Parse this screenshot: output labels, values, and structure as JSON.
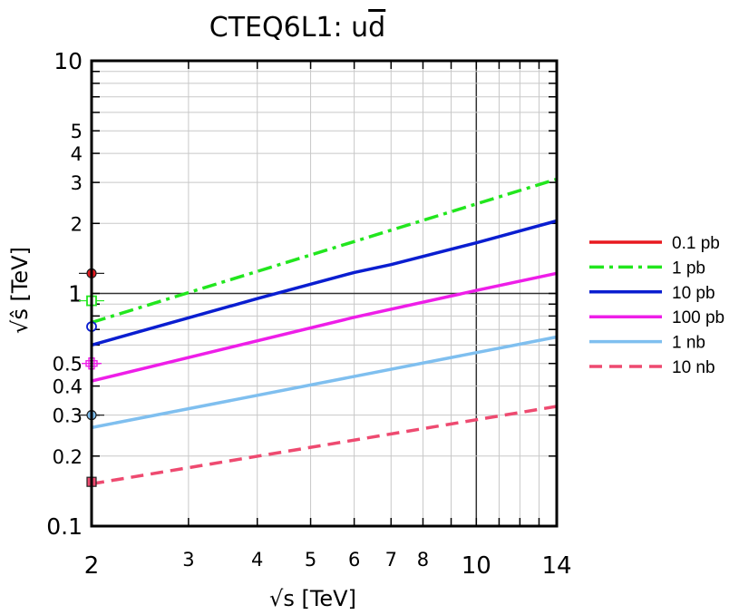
{
  "chart_data": {
    "type": "line",
    "title": "CTEQ6L1: u",
    "title_bar": "d",
    "xlabel": "√s  [TeV]",
    "ylabel": "√ŝ [TeV]",
    "x_scale": "log",
    "y_scale": "log",
    "xlim": [
      2,
      14
    ],
    "ylim": [
      0.1,
      10
    ],
    "x_ticks": [
      2,
      3,
      4,
      5,
      6,
      7,
      8,
      10,
      14
    ],
    "x_tick_labels": [
      "2",
      "3",
      "4",
      "5",
      "6",
      "7",
      "8",
      "10",
      "14"
    ],
    "y_ticks": [
      0.1,
      0.2,
      0.3,
      0.4,
      0.5,
      1,
      2,
      3,
      4,
      5,
      10
    ],
    "y_tick_labels": [
      "0.1",
      "0.2",
      "0.3",
      "0.4",
      "0.5",
      "1",
      "2",
      "3",
      "4",
      "5",
      "10"
    ],
    "grid": true,
    "legend_position": "right",
    "series": [
      {
        "name": "0.1 pb",
        "color": "#e8191f",
        "dash": "solid",
        "x": [],
        "y": [],
        "marker": {
          "shape": "circle",
          "x": 2,
          "y": 1.22
        }
      },
      {
        "name": "1 pb",
        "color": "#22e61e",
        "dash": "dashdot",
        "x": [
          2,
          14
        ],
        "y": [
          0.75,
          3.1
        ],
        "marker": {
          "shape": "open-square",
          "x": 2,
          "y": 0.93
        }
      },
      {
        "name": "10 pb",
        "color": "#0a1ed0",
        "dash": "solid",
        "x": [
          2,
          4,
          6,
          7,
          10,
          14
        ],
        "y": [
          0.6,
          0.95,
          1.23,
          1.33,
          1.65,
          2.05
        ],
        "marker": {
          "shape": "open-circle",
          "x": 2,
          "y": 0.72
        }
      },
      {
        "name": "100 pb",
        "color": "#ee1ee8",
        "dash": "solid",
        "x": [
          2,
          6,
          10,
          14
        ],
        "y": [
          0.42,
          0.79,
          1.03,
          1.22
        ],
        "marker": {
          "shape": "open-cross",
          "x": 2,
          "y": 0.5
        }
      },
      {
        "name": "1 nb",
        "color": "#7fbfef",
        "dash": "solid",
        "x": [
          2,
          14
        ],
        "y": [
          0.265,
          0.65
        ],
        "marker": {
          "shape": "circle",
          "x": 2,
          "y": 0.3
        }
      },
      {
        "name": "10 nb",
        "color": "#ee4a70",
        "dash": "dashed",
        "x": [
          2,
          14
        ],
        "y": [
          0.152,
          0.327
        ],
        "marker": {
          "shape": "square",
          "x": 2,
          "y": 0.155
        }
      }
    ]
  }
}
